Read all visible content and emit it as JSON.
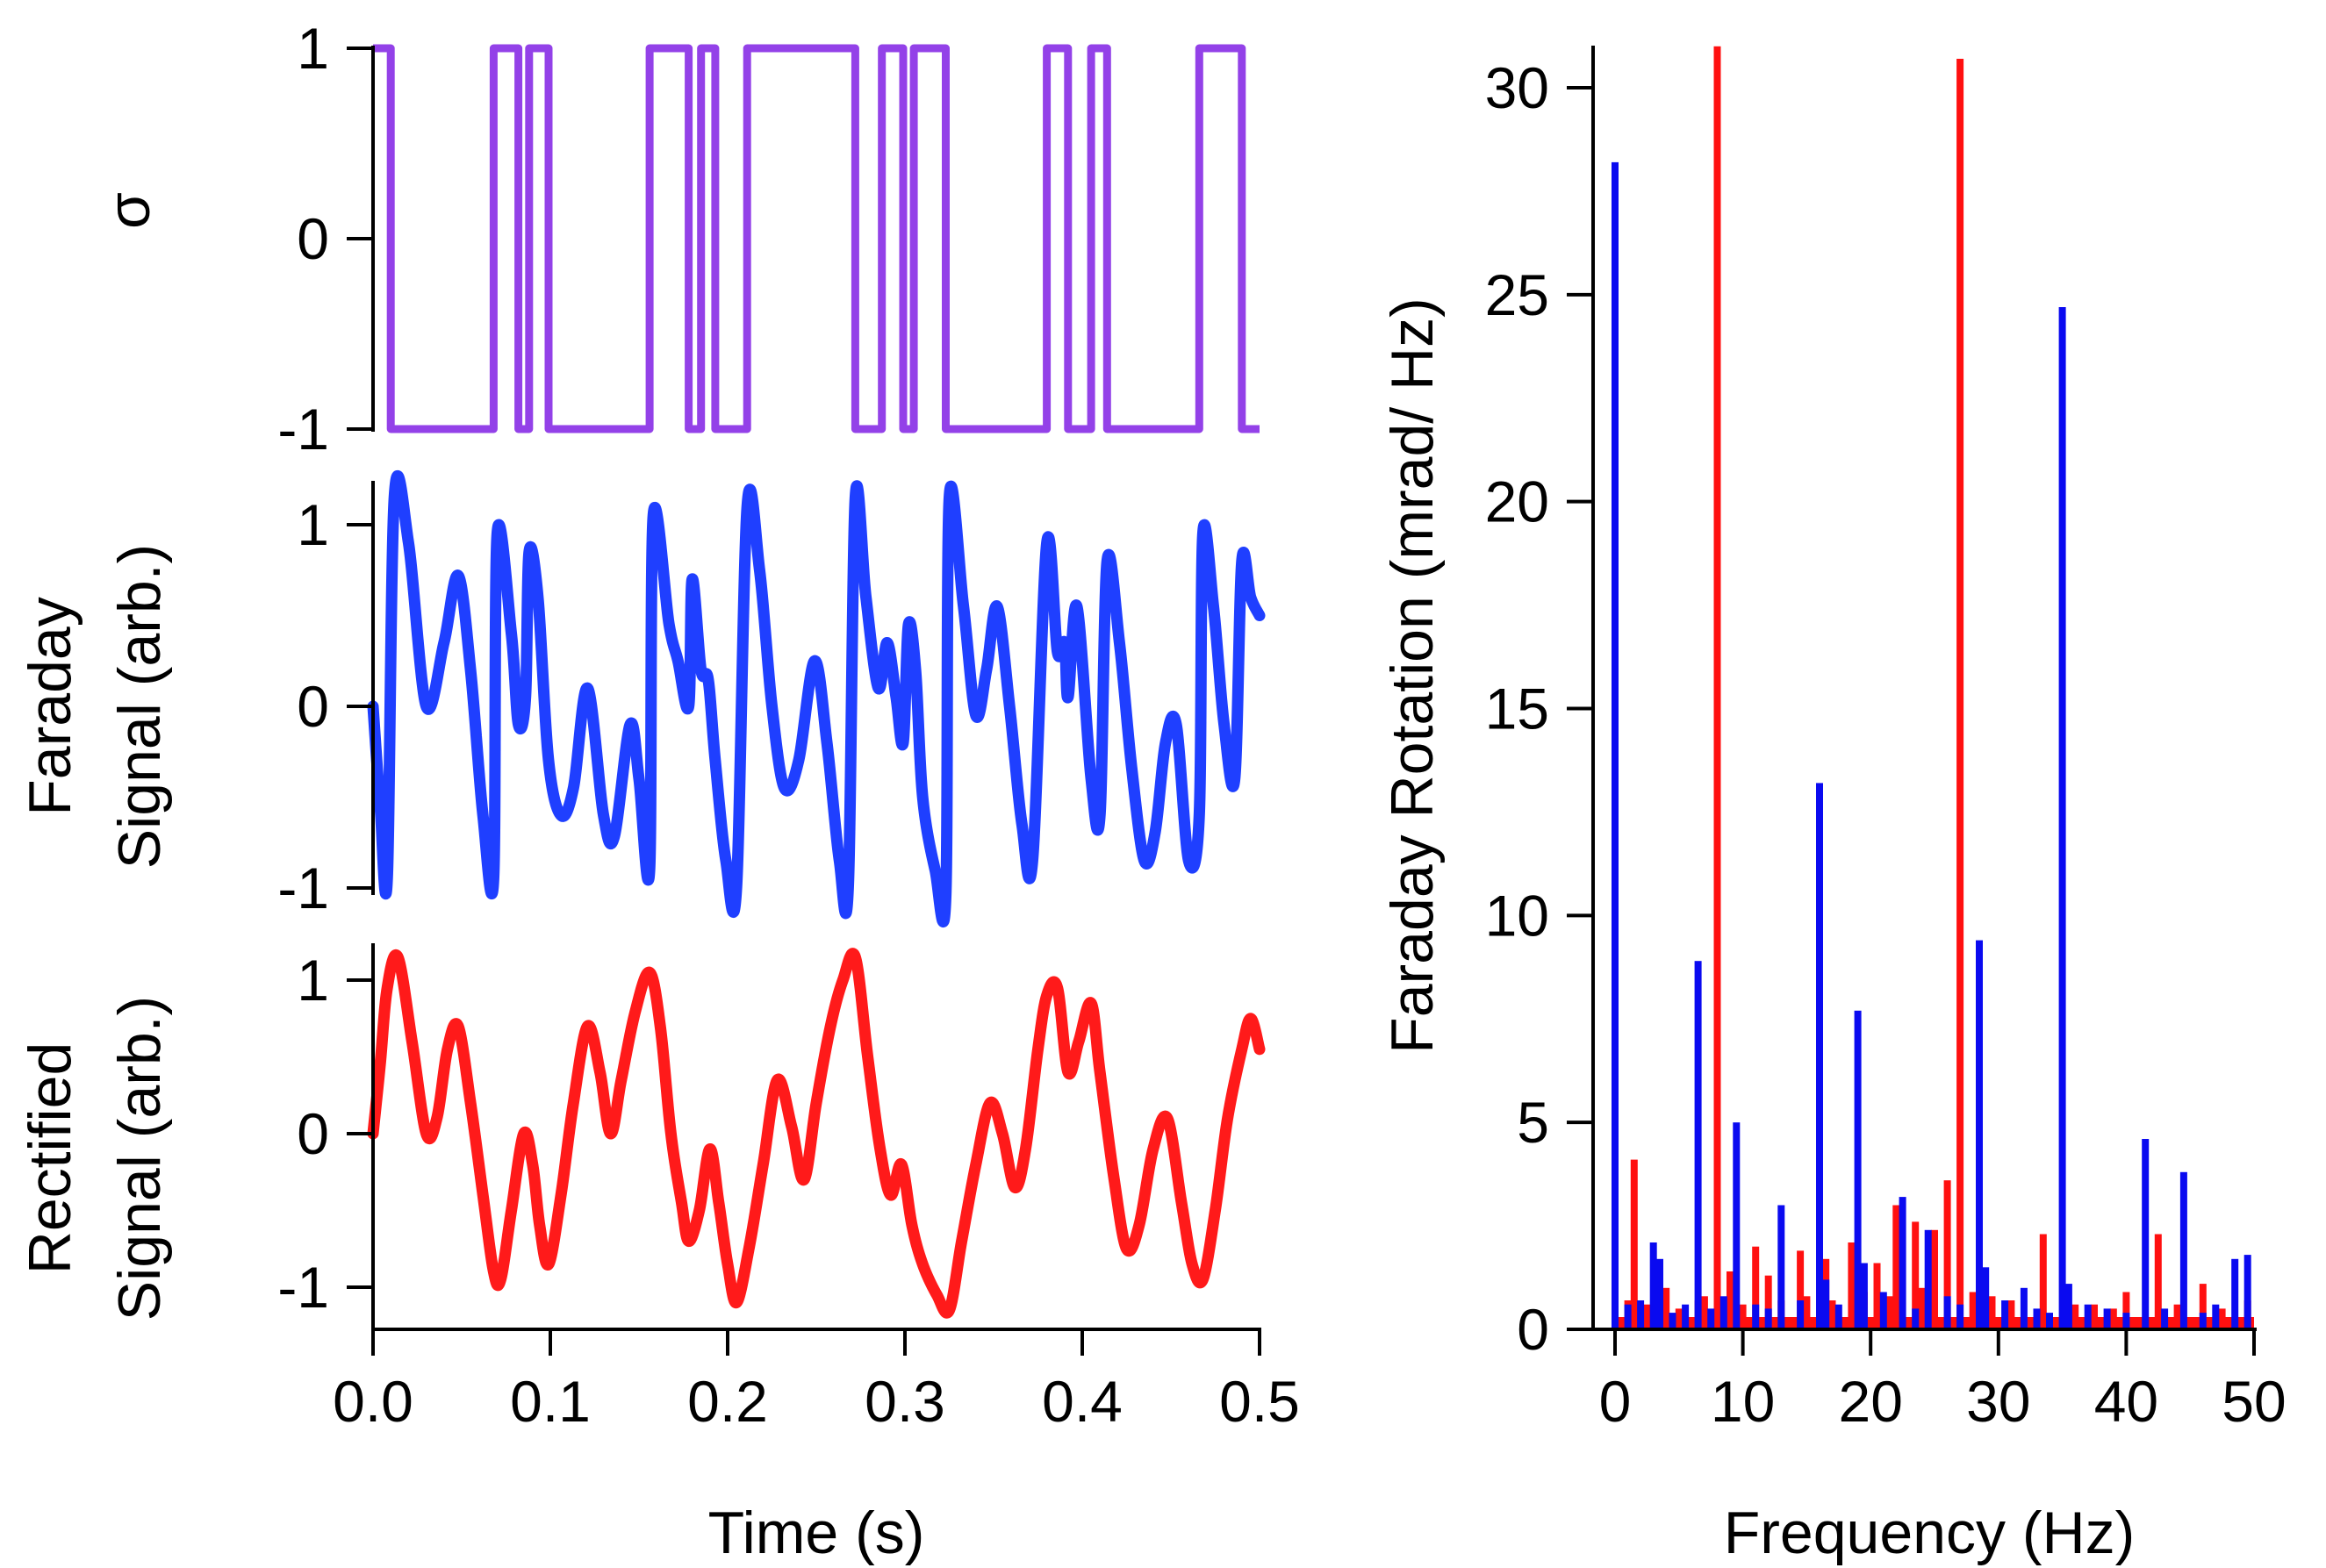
{
  "colors": {
    "sigma": "#9341E8",
    "faraday": "#1F3FFF",
    "rectified": "#FF1A1A",
    "spectrum_blue": "#0A0AF0",
    "spectrum_red": "#FF1010",
    "axis": "#000000"
  },
  "chart_data": [
    {
      "id": "sigma",
      "type": "line",
      "ylabel": "σ",
      "xlim": [
        0.0,
        0.5
      ],
      "ylim": [
        -1,
        1
      ],
      "yticks": [
        "1",
        "0",
        "-1"
      ],
      "ytick_values": [
        1,
        0,
        -1
      ],
      "series": [
        {
          "name": "sigma",
          "color_key": "sigma",
          "style": "step",
          "initial": 1,
          "transitions": [
            0.01,
            0.068,
            0.082,
            0.088,
            0.099,
            0.156,
            0.178,
            0.185,
            0.193,
            0.211,
            0.272,
            0.287,
            0.299,
            0.305,
            0.323,
            0.38,
            0.392,
            0.405,
            0.414,
            0.466,
            0.49
          ],
          "end": 0.5
        }
      ]
    },
    {
      "id": "faraday",
      "type": "line",
      "ylabel_lines": [
        "Faraday",
        "Signal (arb.)"
      ],
      "xlim": [
        0.0,
        0.5
      ],
      "ylim": [
        -1.05,
        1.25
      ],
      "yticks": [
        "1",
        "0",
        "-1"
      ],
      "ytick_values": [
        1,
        0,
        -1
      ],
      "series": [
        {
          "name": "faraday",
          "color_key": "faraday",
          "style": "thick-line",
          "points": [
            [
              0.0,
              0.0
            ],
            [
              0.004,
              -0.55
            ],
            [
              0.008,
              -0.95
            ],
            [
              0.012,
              1.15
            ],
            [
              0.02,
              0.9
            ],
            [
              0.03,
              0.0
            ],
            [
              0.04,
              0.35
            ],
            [
              0.048,
              0.72
            ],
            [
              0.055,
              0.2
            ],
            [
              0.062,
              -0.6
            ],
            [
              0.068,
              -0.95
            ],
            [
              0.07,
              0.95
            ],
            [
              0.078,
              0.4
            ],
            [
              0.082,
              -0.1
            ],
            [
              0.086,
              0.05
            ],
            [
              0.088,
              0.85
            ],
            [
              0.093,
              0.6
            ],
            [
              0.099,
              -0.3
            ],
            [
              0.106,
              -0.6
            ],
            [
              0.113,
              -0.45
            ],
            [
              0.121,
              0.1
            ],
            [
              0.13,
              -0.6
            ],
            [
              0.136,
              -0.72
            ],
            [
              0.145,
              -0.1
            ],
            [
              0.15,
              -0.4
            ],
            [
              0.156,
              -0.9
            ],
            [
              0.158,
              1.05
            ],
            [
              0.167,
              0.45
            ],
            [
              0.172,
              0.25
            ],
            [
              0.178,
              0.0
            ],
            [
              0.18,
              0.7
            ],
            [
              0.185,
              0.2
            ],
            [
              0.189,
              0.15
            ],
            [
              0.193,
              -0.3
            ],
            [
              0.199,
              -0.85
            ],
            [
              0.205,
              -1.0
            ],
            [
              0.211,
              1.1
            ],
            [
              0.218,
              0.75
            ],
            [
              0.225,
              0.0
            ],
            [
              0.232,
              -0.45
            ],
            [
              0.24,
              -0.3
            ],
            [
              0.249,
              0.25
            ],
            [
              0.256,
              -0.2
            ],
            [
              0.263,
              -0.85
            ],
            [
              0.268,
              -1.0
            ],
            [
              0.272,
              1.15
            ],
            [
              0.278,
              0.6
            ],
            [
              0.285,
              0.1
            ],
            [
              0.29,
              0.35
            ],
            [
              0.295,
              0.05
            ],
            [
              0.299,
              -0.2
            ],
            [
              0.302,
              0.45
            ],
            [
              0.306,
              0.2
            ],
            [
              0.31,
              -0.5
            ],
            [
              0.317,
              -0.9
            ],
            [
              0.323,
              -1.05
            ],
            [
              0.325,
              1.15
            ],
            [
              0.333,
              0.55
            ],
            [
              0.34,
              -0.05
            ],
            [
              0.346,
              0.2
            ],
            [
              0.352,
              0.55
            ],
            [
              0.359,
              0.0
            ],
            [
              0.366,
              -0.65
            ],
            [
              0.372,
              -0.85
            ],
            [
              0.38,
              0.9
            ],
            [
              0.386,
              0.3
            ],
            [
              0.39,
              0.35
            ],
            [
              0.392,
              0.05
            ],
            [
              0.397,
              0.55
            ],
            [
              0.405,
              -0.4
            ],
            [
              0.41,
              -0.6
            ],
            [
              0.414,
              0.8
            ],
            [
              0.421,
              0.35
            ],
            [
              0.428,
              -0.35
            ],
            [
              0.435,
              -0.85
            ],
            [
              0.441,
              -0.7
            ],
            [
              0.447,
              -0.2
            ],
            [
              0.453,
              -0.1
            ],
            [
              0.46,
              -0.85
            ],
            [
              0.466,
              -0.6
            ],
            [
              0.468,
              0.95
            ],
            [
              0.474,
              0.55
            ],
            [
              0.48,
              -0.1
            ],
            [
              0.486,
              -0.4
            ],
            [
              0.49,
              0.8
            ],
            [
              0.495,
              0.6
            ],
            [
              0.5,
              0.5
            ]
          ]
        }
      ]
    },
    {
      "id": "rectified",
      "type": "line",
      "ylabel_lines": [
        "Rectified",
        "Signal (arb.)"
      ],
      "xlim": [
        0.0,
        0.5
      ],
      "ylim": [
        -1.25,
        1.25
      ],
      "yticks": [
        "1",
        "0",
        "-1"
      ],
      "ytick_values": [
        1,
        0,
        -1
      ],
      "xlabel": "Time (s)",
      "xticks": [
        "0.0",
        "0.1",
        "0.2",
        "0.3",
        "0.4",
        "0.5"
      ],
      "xtick_values": [
        0.0,
        0.1,
        0.2,
        0.3,
        0.4,
        0.5
      ],
      "series": [
        {
          "name": "rectified",
          "color_key": "rectified",
          "style": "thick-line",
          "points": [
            [
              0.0,
              0.0
            ],
            [
              0.004,
              0.45
            ],
            [
              0.008,
              0.95
            ],
            [
              0.014,
              1.15
            ],
            [
              0.022,
              0.6
            ],
            [
              0.03,
              0.0
            ],
            [
              0.036,
              0.1
            ],
            [
              0.042,
              0.55
            ],
            [
              0.048,
              0.7
            ],
            [
              0.055,
              0.2
            ],
            [
              0.062,
              -0.4
            ],
            [
              0.068,
              -0.9
            ],
            [
              0.072,
              -0.95
            ],
            [
              0.078,
              -0.5
            ],
            [
              0.085,
              0.0
            ],
            [
              0.09,
              -0.2
            ],
            [
              0.094,
              -0.6
            ],
            [
              0.099,
              -0.85
            ],
            [
              0.106,
              -0.4
            ],
            [
              0.113,
              0.2
            ],
            [
              0.121,
              0.7
            ],
            [
              0.128,
              0.4
            ],
            [
              0.134,
              0.0
            ],
            [
              0.14,
              0.35
            ],
            [
              0.148,
              0.8
            ],
            [
              0.156,
              1.05
            ],
            [
              0.162,
              0.7
            ],
            [
              0.168,
              0.0
            ],
            [
              0.174,
              -0.45
            ],
            [
              0.178,
              -0.7
            ],
            [
              0.184,
              -0.5
            ],
            [
              0.19,
              -0.1
            ],
            [
              0.195,
              -0.45
            ],
            [
              0.2,
              -0.85
            ],
            [
              0.205,
              -1.1
            ],
            [
              0.212,
              -0.75
            ],
            [
              0.22,
              -0.2
            ],
            [
              0.228,
              0.35
            ],
            [
              0.236,
              0.05
            ],
            [
              0.243,
              -0.3
            ],
            [
              0.25,
              0.2
            ],
            [
              0.258,
              0.7
            ],
            [
              0.265,
              1.0
            ],
            [
              0.272,
              1.15
            ],
            [
              0.279,
              0.5
            ],
            [
              0.286,
              -0.1
            ],
            [
              0.292,
              -0.4
            ],
            [
              0.298,
              -0.2
            ],
            [
              0.304,
              -0.6
            ],
            [
              0.31,
              -0.85
            ],
            [
              0.318,
              -1.05
            ],
            [
              0.325,
              -1.15
            ],
            [
              0.332,
              -0.7
            ],
            [
              0.34,
              -0.2
            ],
            [
              0.348,
              0.2
            ],
            [
              0.355,
              0.0
            ],
            [
              0.362,
              -0.35
            ],
            [
              0.368,
              -0.1
            ],
            [
              0.375,
              0.55
            ],
            [
              0.38,
              0.9
            ],
            [
              0.386,
              0.95
            ],
            [
              0.392,
              0.4
            ],
            [
              0.398,
              0.6
            ],
            [
              0.405,
              0.85
            ],
            [
              0.41,
              0.4
            ],
            [
              0.418,
              -0.3
            ],
            [
              0.425,
              -0.75
            ],
            [
              0.432,
              -0.6
            ],
            [
              0.44,
              -0.1
            ],
            [
              0.448,
              0.1
            ],
            [
              0.456,
              -0.45
            ],
            [
              0.462,
              -0.85
            ],
            [
              0.468,
              -0.95
            ],
            [
              0.475,
              -0.5
            ],
            [
              0.482,
              0.1
            ],
            [
              0.49,
              0.55
            ],
            [
              0.495,
              0.75
            ],
            [
              0.5,
              0.55
            ]
          ]
        }
      ]
    },
    {
      "id": "spectrum",
      "type": "bar",
      "xlabel": "Frequency (Hz)",
      "ylabel": "Faraday Rotation (mrad/ Hz)",
      "xlim": [
        0,
        50
      ],
      "ylim": [
        0,
        31
      ],
      "xticks": [
        "0",
        "10",
        "20",
        "30",
        "40",
        "50"
      ],
      "xtick_values": [
        0,
        10,
        20,
        30,
        40,
        50
      ],
      "yticks": [
        "0",
        "5",
        "10",
        "15",
        "20",
        "25",
        "30"
      ],
      "ytick_values": [
        0,
        5,
        10,
        15,
        20,
        25,
        30
      ],
      "series": [
        {
          "name": "blue",
          "color_key": "spectrum_blue",
          "x": [
            0,
            3,
            3.5,
            6.5,
            9.5,
            13,
            16,
            16.5,
            19,
            19.5,
            22.5,
            24.5,
            28.5,
            29,
            32,
            35,
            35.5,
            41.5,
            44.5,
            48.5,
            49.5,
            1,
            2,
            4.5,
            5.5,
            7.5,
            8.5,
            11,
            12,
            14.5,
            17.5,
            21,
            23.5,
            26,
            27,
            30.5,
            33,
            34,
            37,
            38.5,
            40,
            43,
            46,
            47
          ],
          "values": [
            28.2,
            2.1,
            1.7,
            8.9,
            5.0,
            3.0,
            13.2,
            1.2,
            7.7,
            1.6,
            3.2,
            2.4,
            9.4,
            1.5,
            1.0,
            24.7,
            1.1,
            4.6,
            3.8,
            1.7,
            1.8,
            0.6,
            0.7,
            0.4,
            0.6,
            0.5,
            0.8,
            0.6,
            0.5,
            0.7,
            0.6,
            0.9,
            0.5,
            0.8,
            0.6,
            0.7,
            0.5,
            0.4,
            0.6,
            0.5,
            0.4,
            0.5,
            0.4,
            0.6
          ]
        },
        {
          "name": "red",
          "color_key": "spectrum_red",
          "x": [
            0,
            1.5,
            2.5,
            4,
            6.5,
            8,
            9,
            11,
            12,
            14.5,
            16.5,
            18.5,
            20.5,
            22,
            23.5,
            25,
            26,
            27,
            29.5,
            33.5,
            37.5,
            40,
            42.5,
            46,
            49.5,
            1,
            3,
            5,
            7,
            10,
            13,
            15,
            17,
            19.5,
            21.5,
            24,
            28,
            31,
            36,
            39,
            44,
            47.5
          ],
          "values": [
            0.8,
            4.1,
            0.6,
            1.0,
            0.7,
            31.0,
            1.4,
            2.0,
            1.3,
            1.9,
            1.7,
            2.1,
            1.6,
            3.0,
            2.6,
            2.4,
            3.6,
            30.7,
            0.8,
            2.3,
            0.6,
            0.9,
            2.3,
            1.1,
            0.7,
            0.7,
            0.6,
            0.5,
            0.8,
            0.6,
            0.7,
            0.8,
            0.7,
            0.9,
            0.8,
            1.0,
            0.9,
            0.7,
            0.6,
            0.5,
            0.6,
            0.5
          ]
        }
      ]
    }
  ]
}
